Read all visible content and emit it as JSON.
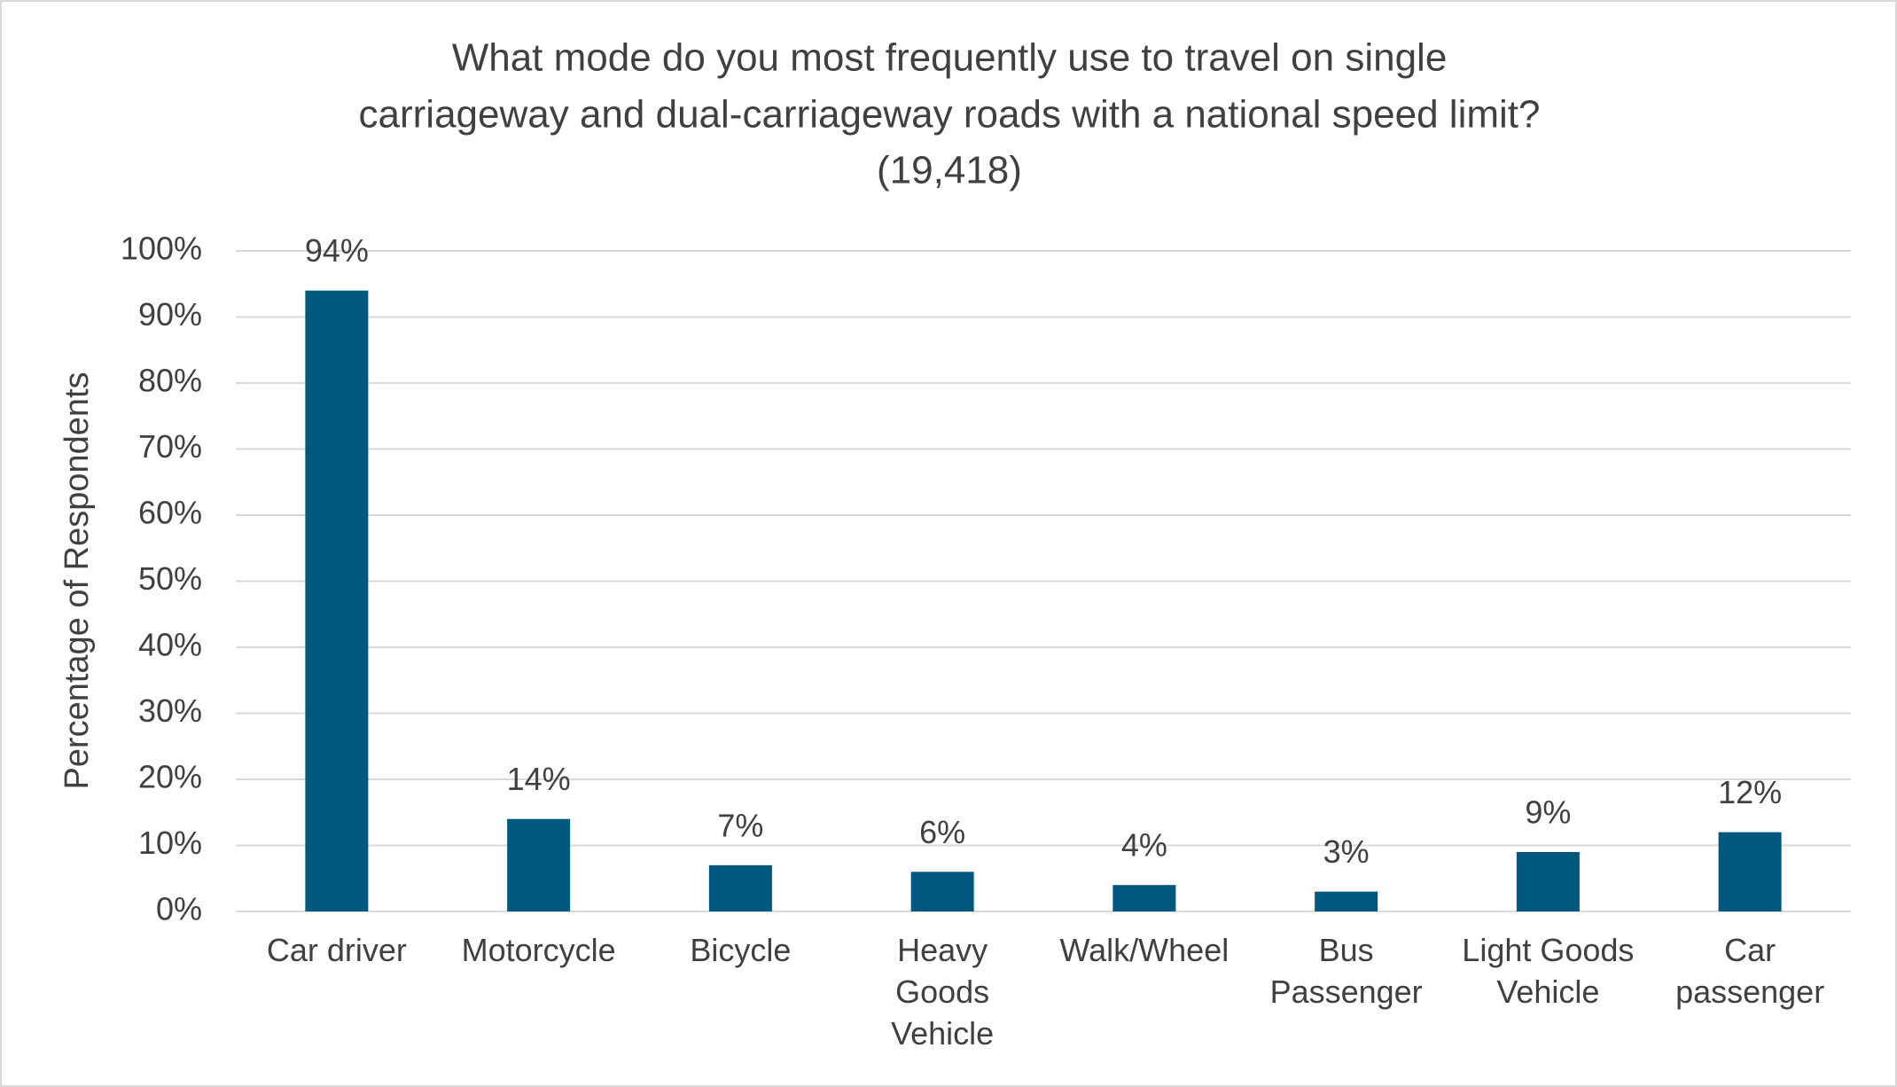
{
  "chart_data": {
    "type": "bar",
    "title": [
      "What mode do you most frequently use to travel on single",
      "carriageway and dual-carriageway roads with a national speed limit?",
      "(19,418)"
    ],
    "y_label": "Percentage of Respondents",
    "categories": [
      "Car driver",
      "Motorcycle",
      "Bicycle",
      "Heavy Goods Vehicle",
      "Walk/Wheel",
      "Bus Passenger",
      "Light Goods Vehicle",
      "Car passenger"
    ],
    "values": [
      94,
      14,
      7,
      6,
      4,
      3,
      9,
      12
    ],
    "value_labels": [
      "94%",
      "14%",
      "7%",
      "6%",
      "4%",
      "3%",
      "9%",
      "12%"
    ],
    "color": "#00587f",
    "ylim": [
      0,
      100
    ],
    "yticks": [
      {
        "value": 0,
        "label": "0%"
      },
      {
        "value": 10,
        "label": "10%"
      },
      {
        "value": 20,
        "label": "20%"
      },
      {
        "value": 30,
        "label": "30%"
      },
      {
        "value": 40,
        "label": "40%"
      },
      {
        "value": 50,
        "label": "50%"
      },
      {
        "value": 60,
        "label": "60%"
      },
      {
        "value": 70,
        "label": "70%"
      },
      {
        "value": 80,
        "label": "80%"
      },
      {
        "value": 90,
        "label": "90%"
      },
      {
        "value": 100,
        "label": "100%"
      }
    ],
    "grid": true
  }
}
